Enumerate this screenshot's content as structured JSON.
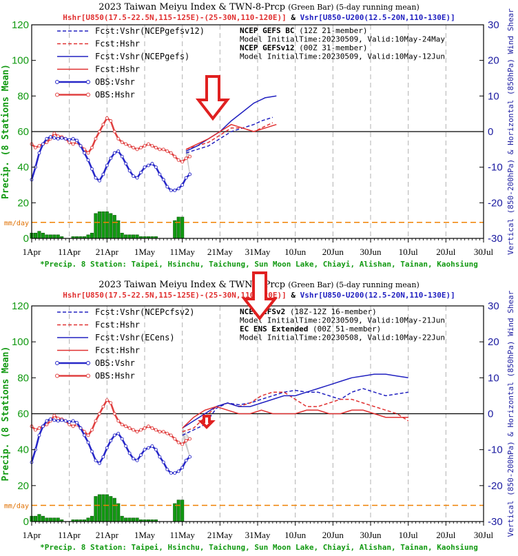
{
  "chart_data": [
    {
      "type": "line",
      "title": "2023 Taiwan Meiyu Index & TWN-8-Prcp",
      "title_small": "(Green Bar) (5-day running mean)",
      "subtitle_left": "Hshr[U850(17.5-22.5N,115-125E)-(25-30N,110-120E)]",
      "subtitle_amp": "&",
      "subtitle_right": "Vshr[U850-U200(12.5-20N,110-130E)]",
      "ylabel_left": "Precip. (8 Stations Mean)",
      "ylabel_right": "Vertical (850-200hPa) & Horizontal (850hPa) Wind Shear",
      "ylim_left": [
        0,
        120
      ],
      "ylim_right": [
        -30,
        30
      ],
      "left_ticks": [
        "0",
        "20",
        "40",
        "60",
        "80",
        "100",
        "120"
      ],
      "right_ticks": [
        "-30",
        "-20",
        "-10",
        "0",
        "10",
        "20",
        "30"
      ],
      "x_ticks": [
        "1Apr",
        "11Apr",
        "21Apr",
        "1May",
        "11May",
        "21May",
        "31May",
        "10Jun",
        "20Jun",
        "30Jun",
        "10Jul",
        "20Jul",
        "30Jul"
      ],
      "xlim_days": [
        0,
        120
      ],
      "threshold_label": "9 mm/day",
      "threshold_value": 9,
      "footer": "*Precip. 8 Station: Taipei, Hsinchu, Taichung, Sun Moon Lake, Chiayi, Alishan, Tainan, Kaohsiung",
      "info": [
        {
          "bold": "NCEP GEFS BC",
          "rest": " (12Z 21-member)"
        },
        {
          "bold": "",
          "rest": "Model InitialTime:20230509, Valid:10May-24May"
        },
        {
          "bold": "NCEP GEFSv12",
          "rest": " (00Z 31-member)"
        },
        {
          "bold": "",
          "rest": "Model InitialTime:20230509, Valid:10May-12Jun"
        }
      ],
      "legend": [
        {
          "label": "Fcst:Vshr(NCEPgefsv12)",
          "color": "#2020c0",
          "style": "dash"
        },
        {
          "label": "Fcst:Hshr",
          "color": "#e03030",
          "style": "dash"
        },
        {
          "label": "Fcst:Vshr(NCEPgefs)",
          "color": "#2020c0",
          "style": "solid"
        },
        {
          "label": "Fcst:Hshr",
          "color": "#e03030",
          "style": "solid"
        },
        {
          "label": "OBS:Vshr",
          "color": "#2828c8",
          "style": "obs"
        },
        {
          "label": "OBS:Hshr",
          "color": "#e04040",
          "style": "obs"
        }
      ],
      "precip_days": [
        0,
        1,
        2,
        3,
        4,
        5,
        6,
        7,
        8,
        9,
        10,
        11,
        12,
        13,
        14,
        15,
        16,
        17,
        18,
        19,
        20,
        21,
        22,
        23,
        24,
        25,
        26,
        27,
        28,
        29,
        30,
        31,
        32,
        33,
        34,
        35,
        36,
        37,
        38,
        39,
        40
      ],
      "precip_values": [
        3,
        3,
        4,
        3,
        2,
        2,
        2,
        2,
        1,
        0,
        0,
        1,
        1,
        1,
        1,
        2,
        3,
        14,
        15,
        15,
        15,
        14,
        13,
        10,
        3,
        2,
        2,
        2,
        2,
        1,
        1,
        1,
        1,
        1,
        0,
        0,
        0,
        0,
        10,
        12,
        12
      ],
      "series": [
        {
          "name": "OBS:Hshr",
          "axis": "right",
          "color": "#e04040",
          "style": "obs",
          "x": [
            0,
            1,
            2,
            3,
            4,
            5,
            6,
            7,
            8,
            9,
            10,
            11,
            12,
            13,
            14,
            15,
            16,
            17,
            18,
            19,
            20,
            21,
            22,
            23,
            24,
            25,
            26,
            27,
            28,
            29,
            30,
            31,
            32,
            33,
            34,
            35,
            36,
            37,
            38,
            39,
            40,
            41,
            42
          ],
          "y": [
            -3.5,
            -4.5,
            -4,
            -3.5,
            -3,
            -2,
            -0.5,
            -1.3,
            -1.5,
            -2,
            -3,
            -3.5,
            -3,
            -4,
            -5,
            -6,
            -4.5,
            -2,
            0,
            2,
            3.8,
            3,
            0,
            -2,
            -3,
            -3.5,
            -4,
            -4.5,
            -5,
            -4.5,
            -4,
            -3.5,
            -4,
            -4.5,
            -5,
            -5,
            -5.5,
            -6,
            -7,
            -8,
            -8.5,
            -7.5,
            -7
          ]
        },
        {
          "name": "OBS:Vshr",
          "axis": "right",
          "color": "#2828c8",
          "style": "obs",
          "x": [
            0,
            1,
            2,
            3,
            4,
            5,
            6,
            7,
            8,
            9,
            10,
            11,
            12,
            13,
            14,
            15,
            16,
            17,
            18,
            19,
            20,
            21,
            22,
            23,
            24,
            25,
            26,
            27,
            28,
            29,
            30,
            31,
            32,
            33,
            34,
            35,
            36,
            37,
            38,
            39,
            40,
            41,
            42
          ],
          "y": [
            -13.5,
            -10,
            -6,
            -3.5,
            -2,
            -1.5,
            -1.8,
            -2,
            -1.8,
            -2,
            -2.3,
            -2,
            -2.5,
            -4,
            -6,
            -8,
            -10.5,
            -13,
            -13.8,
            -12,
            -9.5,
            -7.5,
            -6,
            -5.5,
            -7,
            -9,
            -11,
            -12.5,
            -13,
            -11.5,
            -10,
            -9.5,
            -9,
            -10,
            -12,
            -13.5,
            -15.5,
            -16.5,
            -16.5,
            -16,
            -15,
            -13,
            -12
          ]
        },
        {
          "name": "Fcst:Vshr(NCEPgefsv12)",
          "axis": "right",
          "color": "#2020c0",
          "style": "dash",
          "x": [
            41,
            44,
            47,
            50,
            53,
            56,
            59,
            61,
            64
          ],
          "y": [
            -6,
            -5,
            -4,
            -2,
            0,
            1,
            2,
            3,
            4
          ]
        },
        {
          "name": "Fcst:Hshr",
          "axis": "right",
          "color": "#e03030",
          "style": "dash",
          "x": [
            41,
            44,
            47,
            50,
            53,
            56,
            59,
            61,
            64
          ],
          "y": [
            -5,
            -4,
            -3,
            -1,
            1,
            1,
            0,
            1,
            2.5
          ]
        },
        {
          "name": "Fcst:Vshr(NCEPgefs)",
          "axis": "right",
          "color": "#2020c0",
          "style": "solid",
          "x": [
            41,
            44,
            47,
            50,
            53,
            56,
            59,
            62,
            65
          ],
          "y": [
            -5.5,
            -4,
            -2,
            0,
            3,
            5.5,
            8,
            9.5,
            10
          ]
        },
        {
          "name": "Fcst:Hshr",
          "axis": "right",
          "color": "#e03030",
          "style": "solid",
          "x": [
            41,
            44,
            47,
            50,
            53,
            56,
            59,
            62,
            65
          ],
          "y": [
            -5,
            -3.5,
            -2,
            0,
            2,
            1,
            0,
            1,
            2
          ]
        }
      ]
    },
    {
      "type": "line",
      "title": "2023 Taiwan Meiyu Index & TWN-8-Prcp",
      "title_small": "(Green Bar) (5-day running mean)",
      "subtitle_left": "Hshr[U850(17.5-22.5N,115-125E)-(25-30N,110-120E)]",
      "subtitle_amp": "&",
      "subtitle_right": "Vshr[U850-U200(12.5-20N,110-130E)]",
      "ylabel_left": "Precip. (8 Stations Mean)",
      "ylabel_right": "Vertical (850-200hPa) & Horizontal (850hPa) Wind Shear",
      "ylim_left": [
        0,
        120
      ],
      "ylim_right": [
        -30,
        30
      ],
      "left_ticks": [
        "0",
        "20",
        "40",
        "60",
        "80",
        "100",
        "120"
      ],
      "right_ticks": [
        "-30",
        "-20",
        "-10",
        "0",
        "10",
        "20",
        "30"
      ],
      "x_ticks": [
        "1Apr",
        "11Apr",
        "21Apr",
        "1May",
        "11May",
        "21May",
        "31May",
        "10Jun",
        "20Jun",
        "30Jun",
        "10Jul",
        "20Jul",
        "30Jul"
      ],
      "xlim_days": [
        0,
        120
      ],
      "threshold_label": "9 mm/day",
      "threshold_value": 9,
      "footer": "*Precip. 8 Station: Taipei, Hsinchu, Taichung, Sun Moon Lake, Chiayi, Alishan, Tainan, Kaohsiung",
      "info": [
        {
          "bold": "NCEP CFSv2",
          "rest": " (18Z-12Z 16-member)"
        },
        {
          "bold": "",
          "rest": "Model InitialTime:20230509, Valid:10May-21Jun"
        },
        {
          "bold": "EC ENS Extended",
          "rest": " (00Z 51-member)"
        },
        {
          "bold": "",
          "rest": "Model InitialTime:20230508, Valid:10May-22Jun"
        }
      ],
      "legend": [
        {
          "label": "Fcst:Vshr(NCEPcfsv2)",
          "color": "#2020c0",
          "style": "dash"
        },
        {
          "label": "Fcst:Hshr",
          "color": "#e03030",
          "style": "dash"
        },
        {
          "label": "Fcst:Vshr(ECens)",
          "color": "#2020c0",
          "style": "solid"
        },
        {
          "label": "Fcst:Hshr",
          "color": "#e03030",
          "style": "solid"
        },
        {
          "label": "OBS:Vshr",
          "color": "#2828c8",
          "style": "obs"
        },
        {
          "label": "OBS:Hshr",
          "color": "#e04040",
          "style": "obs"
        }
      ],
      "precip_days": [
        0,
        1,
        2,
        3,
        4,
        5,
        6,
        7,
        8,
        9,
        10,
        11,
        12,
        13,
        14,
        15,
        16,
        17,
        18,
        19,
        20,
        21,
        22,
        23,
        24,
        25,
        26,
        27,
        28,
        29,
        30,
        31,
        32,
        33,
        34,
        35,
        36,
        37,
        38,
        39,
        40
      ],
      "precip_values": [
        3,
        3,
        4,
        3,
        2,
        2,
        2,
        2,
        1,
        0,
        0,
        1,
        1,
        1,
        1,
        2,
        3,
        14,
        15,
        15,
        15,
        14,
        13,
        10,
        3,
        2,
        2,
        2,
        2,
        1,
        1,
        1,
        1,
        1,
        0,
        0,
        0,
        0,
        10,
        12,
        12
      ],
      "series": [
        {
          "name": "OBS:Hshr",
          "axis": "right",
          "color": "#e04040",
          "style": "obs",
          "x": [
            0,
            1,
            2,
            3,
            4,
            5,
            6,
            7,
            8,
            9,
            10,
            11,
            12,
            13,
            14,
            15,
            16,
            17,
            18,
            19,
            20,
            21,
            22,
            23,
            24,
            25,
            26,
            27,
            28,
            29,
            30,
            31,
            32,
            33,
            34,
            35,
            36,
            37,
            38,
            39,
            40,
            41,
            42
          ],
          "y": [
            -3.5,
            -4.5,
            -4,
            -3.5,
            -3,
            -2,
            -0.5,
            -1.3,
            -1.5,
            -2,
            -3,
            -3.5,
            -3,
            -4,
            -5,
            -6,
            -4.5,
            -2,
            0,
            2,
            3.8,
            3,
            0,
            -2,
            -3,
            -3.5,
            -4,
            -4.5,
            -5,
            -4.5,
            -4,
            -3.5,
            -4,
            -4.5,
            -5,
            -5,
            -5.5,
            -6,
            -7,
            -8,
            -8.5,
            -7.5,
            -7
          ]
        },
        {
          "name": "OBS:Vshr",
          "axis": "right",
          "color": "#2828c8",
          "style": "obs",
          "x": [
            0,
            1,
            2,
            3,
            4,
            5,
            6,
            7,
            8,
            9,
            10,
            11,
            12,
            13,
            14,
            15,
            16,
            17,
            18,
            19,
            20,
            21,
            22,
            23,
            24,
            25,
            26,
            27,
            28,
            29,
            30,
            31,
            32,
            33,
            34,
            35,
            36,
            37,
            38,
            39,
            40,
            41,
            42
          ],
          "y": [
            -13.5,
            -10,
            -6,
            -3.5,
            -2,
            -1.5,
            -1.8,
            -2,
            -1.8,
            -2,
            -2.3,
            -2,
            -2.5,
            -4,
            -6,
            -8,
            -10.5,
            -13,
            -13.8,
            -12,
            -9.5,
            -7.5,
            -6,
            -5.5,
            -7,
            -9,
            -11,
            -12.5,
            -13,
            -11.5,
            -10,
            -9.5,
            -9,
            -10,
            -12,
            -13.5,
            -15.5,
            -16.5,
            -16.5,
            -16,
            -15,
            -13,
            -12
          ]
        },
        {
          "name": "Fcst:Vshr(NCEPcfsv2)",
          "axis": "right",
          "color": "#2020c0",
          "style": "dash",
          "x": [
            40,
            43,
            46,
            49,
            52,
            55,
            58,
            61,
            64,
            67,
            70,
            73,
            76,
            79,
            82,
            85,
            88,
            91,
            94,
            97,
            100
          ],
          "y": [
            -6,
            -4.5,
            -3,
            1.5,
            3,
            2.5,
            3,
            4,
            5,
            6,
            6.5,
            6,
            6,
            5,
            4,
            6,
            7,
            6,
            5,
            5.5,
            6
          ]
        },
        {
          "name": "Fcst:Hshr",
          "axis": "right",
          "color": "#e03030",
          "style": "dash",
          "x": [
            40,
            43,
            46,
            49,
            52,
            55,
            58,
            61,
            64,
            67,
            70,
            73,
            76,
            79,
            82,
            85,
            88,
            91,
            94,
            97,
            100
          ],
          "y": [
            -5,
            -4,
            -1,
            2,
            3,
            2,
            3,
            5,
            6,
            6,
            4,
            2,
            2,
            3,
            4,
            4,
            3,
            2,
            1,
            0,
            -2
          ]
        },
        {
          "name": "Fcst:Vshr(ECens)",
          "axis": "right",
          "color": "#2020c0",
          "style": "solid",
          "x": [
            40,
            43,
            46,
            49,
            52,
            55,
            58,
            61,
            64,
            67,
            70,
            73,
            76,
            79,
            82,
            85,
            88,
            91,
            94,
            97,
            100
          ],
          "y": [
            -4,
            -2,
            0,
            2,
            3,
            2,
            2,
            3,
            4,
            5,
            5,
            6,
            7,
            8,
            9,
            10,
            10.5,
            11,
            11,
            10.5,
            10
          ]
        },
        {
          "name": "Fcst:Hshr",
          "axis": "right",
          "color": "#e03030",
          "style": "solid",
          "x": [
            40,
            43,
            46,
            49,
            52,
            55,
            58,
            61,
            64,
            67,
            70,
            73,
            76,
            79,
            82,
            85,
            88,
            91,
            94,
            97,
            100
          ],
          "y": [
            -4,
            -1,
            1,
            2,
            1,
            0,
            0,
            1,
            0,
            0,
            0,
            1,
            1,
            0,
            0,
            1,
            1,
            0,
            -1,
            -1,
            -1
          ]
        }
      ]
    }
  ]
}
